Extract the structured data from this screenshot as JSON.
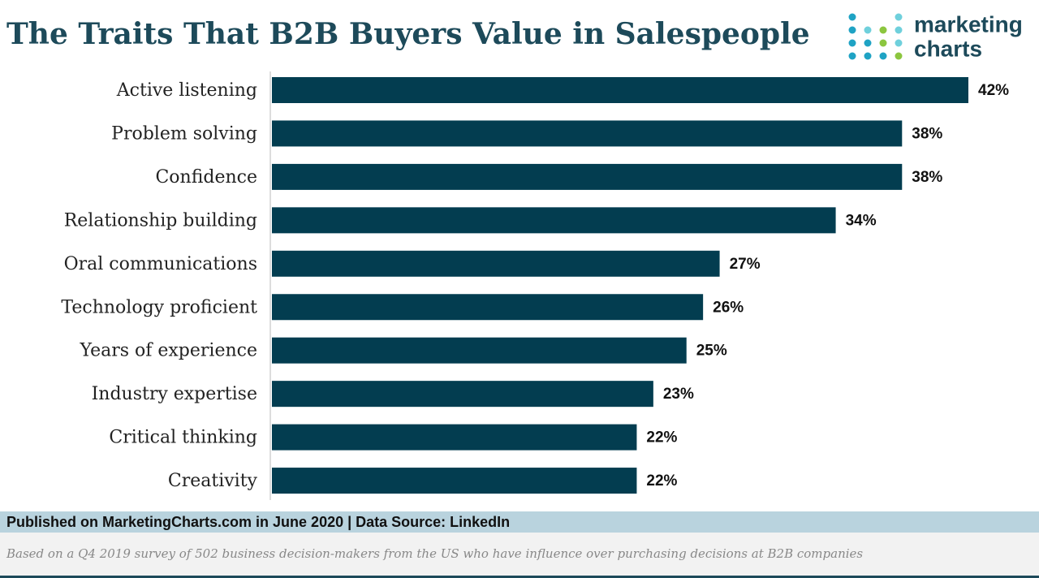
{
  "chart_data": {
    "type": "bar",
    "orientation": "horizontal",
    "title": "The Traits That B2B Buyers Value in Salespeople",
    "categories": [
      "Active listening",
      "Problem solving",
      "Confidence",
      "Relationship building",
      "Oral communications",
      "Technology proficient",
      "Years of experience",
      "Industry expertise",
      "Critical thinking",
      "Creativity"
    ],
    "values": [
      42,
      38,
      38,
      34,
      27,
      26,
      25,
      23,
      22,
      22
    ],
    "value_labels": [
      "42%",
      "38%",
      "38%",
      "34%",
      "27%",
      "26%",
      "25%",
      "23%",
      "22%",
      "22%"
    ],
    "color": "#033d50"
  },
  "logo": {
    "line1": "marketing",
    "line2": "charts"
  },
  "footer": {
    "source": "Published on MarketingCharts.com in June 2020 | Data Source: LinkedIn",
    "note": "Based on a Q4 2019 survey of 502 business decision-makers from the US who have influence over purchasing decisions at B2B companies"
  }
}
